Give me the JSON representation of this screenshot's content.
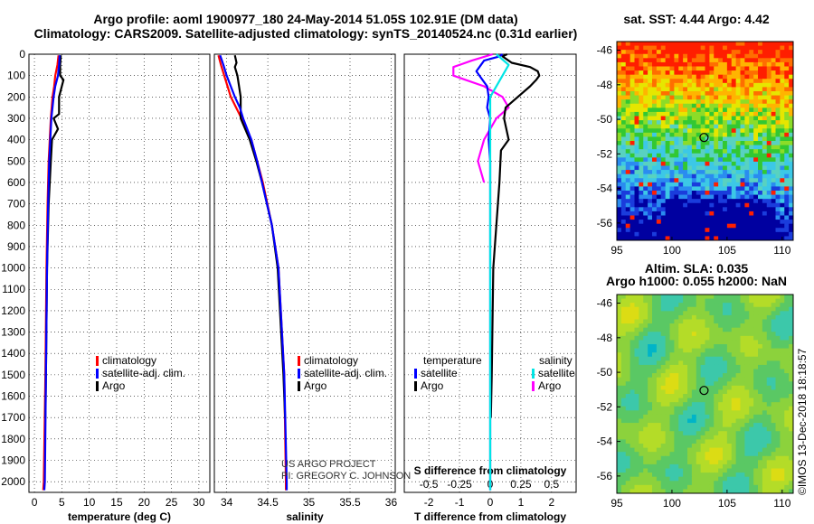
{
  "title_line1": "Argo profile: aoml 1900977_180 24-May-2014 51.05S 102.91E (DM data)",
  "title_line2": "Climatology: CARS2009. Satellite-adjusted climatology: synTS_20140524.nc (0.31d earlier)",
  "colors": {
    "climatology": "#ff0000",
    "satellite": "#0000ff",
    "argo": "#000000",
    "sat_s": "#00e5e5",
    "argo_s": "#ff00ff"
  },
  "depth_ticks": [
    "0",
    "100",
    "200",
    "300",
    "400",
    "500",
    "600",
    "700",
    "800",
    "900",
    "1000",
    "1100",
    "1200",
    "1300",
    "1400",
    "1500",
    "1600",
    "1700",
    "1800",
    "1900",
    "2000"
  ],
  "legend": {
    "climatology": "climatology",
    "satellite_adj": "satellite-adj. clim.",
    "argo": "Argo",
    "temperature": "temperature",
    "salinity": "salinity",
    "satellite": "satellite"
  },
  "credit": {
    "line1": "US ARGO PROJECT",
    "line2": "PI: GREGORY C. JOHNSON"
  },
  "chart_data": [
    {
      "type": "line",
      "name": "temperature",
      "xlabel": "temperature (deg C)",
      "ylabel": "depth",
      "xlim": [
        -1,
        32
      ],
      "ylim": [
        0,
        2050
      ],
      "xticks": [
        0,
        5,
        10,
        15,
        20,
        25,
        30
      ],
      "x_tick_labels": [
        "0",
        "5",
        "10",
        "15",
        "20",
        "25",
        "30"
      ],
      "series": [
        {
          "name": "climatology",
          "depth": [
            5,
            50,
            100,
            150,
            200,
            300,
            400,
            500,
            700,
            1000,
            1500,
            2000,
            2040
          ],
          "values": [
            4.4,
            4.2,
            3.8,
            3.6,
            3.3,
            3.0,
            2.8,
            2.6,
            2.4,
            2.2,
            2.0,
            1.7,
            1.6
          ]
        },
        {
          "name": "satellite-adj. clim.",
          "depth": [
            5,
            50,
            100,
            150,
            200,
            300,
            400,
            500,
            700,
            1000,
            1500,
            2000,
            2040
          ],
          "values": [
            4.6,
            4.5,
            4.3,
            3.8,
            3.5,
            3.1,
            2.9,
            2.7,
            2.5,
            2.3,
            2.1,
            1.9,
            1.8
          ]
        },
        {
          "name": "Argo",
          "depth": [
            5,
            50,
            100,
            120,
            200,
            280,
            300,
            350,
            400,
            500,
            700,
            1000,
            1500,
            1700
          ],
          "values": [
            4.8,
            4.7,
            4.7,
            5.3,
            4.5,
            4.5,
            3.5,
            4.3,
            3.2,
            3.0,
            2.6,
            2.3,
            2.1,
            2.0
          ]
        }
      ]
    },
    {
      "type": "line",
      "name": "salinity",
      "xlabel": "salinity",
      "ylabel": "depth",
      "xlim": [
        33.85,
        36.05
      ],
      "ylim": [
        0,
        2050
      ],
      "xticks": [
        34,
        34.5,
        35,
        35.5,
        36
      ],
      "x_tick_labels": [
        "34",
        "34.5",
        "35",
        "35.5",
        "36"
      ],
      "series": [
        {
          "name": "climatology",
          "depth": [
            5,
            50,
            100,
            200,
            300,
            400,
            500,
            600,
            800,
            1000,
            1500,
            2000,
            2040
          ],
          "values": [
            33.9,
            33.93,
            33.97,
            34.05,
            34.18,
            34.3,
            34.37,
            34.44,
            34.55,
            34.63,
            34.7,
            34.72,
            34.72
          ]
        },
        {
          "name": "satellite-adj. clim.",
          "depth": [
            5,
            50,
            100,
            200,
            250,
            300,
            400,
            500,
            600,
            800,
            1000,
            1500,
            2000,
            2040
          ],
          "values": [
            33.92,
            33.96,
            34.0,
            34.1,
            34.16,
            34.2,
            34.3,
            34.37,
            34.43,
            34.55,
            34.63,
            34.7,
            34.73,
            34.73
          ]
        },
        {
          "name": "Argo",
          "depth": [
            5,
            40,
            60,
            100,
            150,
            200,
            300,
            400,
            500,
            600,
            800,
            1000,
            1500,
            1700
          ],
          "values": [
            34.1,
            34.12,
            34.1,
            34.13,
            34.15,
            34.17,
            34.17,
            34.28,
            34.36,
            34.43,
            34.55,
            34.62,
            34.69,
            34.71
          ]
        }
      ]
    },
    {
      "type": "line",
      "name": "difference from climatology",
      "xlabel": "T difference from climatology",
      "x2label": "S difference from climatology",
      "ylabel": "depth",
      "xlim": [
        -2.8,
        2.8
      ],
      "ylim": [
        0,
        2050
      ],
      "xticks": [
        -2,
        -1,
        0,
        1,
        2
      ],
      "x_tick_labels": [
        "-2",
        "-1",
        "0",
        "1",
        "2"
      ],
      "x2_tick_labels": [
        "-0.5",
        "-0.25",
        "0",
        "0.25",
        "0.5"
      ],
      "series": [
        {
          "name": "temperature satellite",
          "depth": [
            0,
            10,
            30,
            50,
            80,
            100,
            150,
            200,
            250,
            300,
            400,
            500,
            700,
            1000,
            1500,
            2000,
            2040
          ],
          "values": [
            0.4,
            0.3,
            -0.2,
            -0.3,
            -0.45,
            -0.35,
            -0.1,
            -0.05,
            -0.1,
            0,
            -0.05,
            0,
            0,
            0,
            0,
            0,
            0
          ]
        },
        {
          "name": "temperature Argo",
          "depth": [
            0,
            10,
            40,
            60,
            80,
            100,
            120,
            150,
            200,
            250,
            300,
            400,
            450,
            600,
            800,
            1000,
            1500,
            1700
          ],
          "values": [
            0.55,
            0.4,
            0.7,
            1.3,
            1.55,
            1.6,
            1.5,
            1.3,
            0.9,
            0.5,
            0.45,
            0.6,
            0.35,
            0.3,
            0.2,
            0.1,
            0.05,
            0.02
          ]
        },
        {
          "name": "salinity satellite",
          "depth": [
            0,
            50,
            100,
            200,
            300,
            400,
            500,
            700,
            1000,
            1500,
            2000,
            2040
          ],
          "values": [
            0.05,
            0.15,
            0.1,
            0,
            0,
            0,
            0,
            0,
            0,
            0,
            0,
            0
          ]
        },
        {
          "name": "salinity Argo",
          "depth": [
            0,
            30,
            60,
            100,
            150,
            200,
            250,
            300,
            400,
            500,
            600
          ],
          "values": [
            0.02,
            -0.15,
            -0.3,
            -0.3,
            -0.05,
            0.1,
            0.15,
            0.05,
            -0.05,
            -0.1,
            -0.05
          ]
        }
      ]
    },
    {
      "type": "heatmap",
      "name": "sat SST",
      "title": "sat. SST: 4.44 Argo: 4.42",
      "xlim": [
        95,
        111
      ],
      "ylim": [
        -57,
        -45.5
      ],
      "xticks": [
        95,
        100,
        105,
        110
      ],
      "yticks": [
        -46,
        -48,
        -50,
        -52,
        -54,
        -56
      ],
      "x_tick_labels": [
        "95",
        "100",
        "105",
        "110"
      ],
      "y_tick_labels": [
        "-46",
        "-48",
        "-50",
        "-52",
        "-54",
        "-56"
      ],
      "argo_position": [
        102.91,
        -51.05
      ]
    },
    {
      "type": "heatmap",
      "name": "Altim. SLA",
      "title": "Altim. SLA: 0.035",
      "subtitle": "Argo h1000: 0.055 h2000: NaN",
      "xlim": [
        95,
        111
      ],
      "ylim": [
        -57,
        -45.5
      ],
      "xticks": [
        95,
        100,
        105,
        110
      ],
      "yticks": [
        -46,
        -48,
        -50,
        -52,
        -54,
        -56
      ],
      "x_tick_labels": [
        "95",
        "100",
        "105",
        "110"
      ],
      "y_tick_labels": [
        "-46",
        "-48",
        "-50",
        "-52",
        "-54",
        "-56"
      ],
      "argo_position": [
        102.91,
        -51.05
      ]
    }
  ],
  "side_label": "©IMOS 13-Dec-2018 18:18:57"
}
